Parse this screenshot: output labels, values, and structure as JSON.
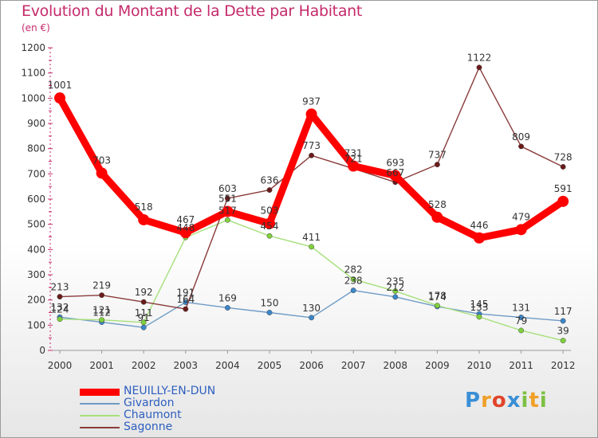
{
  "header": {
    "title": "Evolution du Montant de la Dette par Habitant",
    "subtitle": "(en €)"
  },
  "colors": {
    "title": "#c52a6b",
    "axis_text": "#333333",
    "legend_text": "#2e5fbf"
  },
  "chart_data": {
    "type": "line",
    "categories": [
      "2000",
      "2001",
      "2002",
      "2003",
      "2004",
      "2005",
      "2006",
      "2007",
      "2008",
      "2009",
      "2010",
      "2011",
      "2012"
    ],
    "ylim": [
      0,
      1200
    ],
    "yticks": [
      0,
      100,
      200,
      300,
      400,
      500,
      600,
      700,
      800,
      900,
      1000,
      1100,
      1200
    ],
    "grid": false,
    "legend_position": "bottom-left",
    "series": [
      {
        "name": "NEUILLY-EN-DUN",
        "color": "#ff0000",
        "style": "thick",
        "values": [
          1001,
          703,
          518,
          467,
          551,
          503,
          937,
          731,
          693,
          528,
          446,
          479,
          591
        ]
      },
      {
        "name": "Givardon",
        "color": "#6e9bc6",
        "marker": "#3b86c9",
        "style": "thin",
        "values": [
          132,
          112,
          91,
          191,
          169,
          150,
          130,
          238,
          212,
          174,
          145,
          131,
          117
        ]
      },
      {
        "name": "Chaumont",
        "color": "#a6e07a",
        "marker": "#7fd13b",
        "style": "thin",
        "values": [
          124,
          121,
          111,
          448,
          517,
          454,
          411,
          282,
          235,
          178,
          133,
          79,
          39
        ]
      },
      {
        "name": "Sagonne",
        "color": "#8a3b3b",
        "marker": "#6b1a1a",
        "style": "thin",
        "values": [
          213,
          219,
          192,
          164,
          603,
          636,
          773,
          721,
          667,
          737,
          1122,
          809,
          728
        ]
      }
    ]
  },
  "logo": {
    "letters": [
      "P",
      "r",
      "o",
      "x",
      "i",
      "t",
      "i"
    ],
    "colors": [
      "#3a8fd6",
      "#f0a028",
      "#e0452a",
      "#3a8fd6",
      "#7cc142",
      "#f0a028",
      "#7cc142"
    ]
  }
}
